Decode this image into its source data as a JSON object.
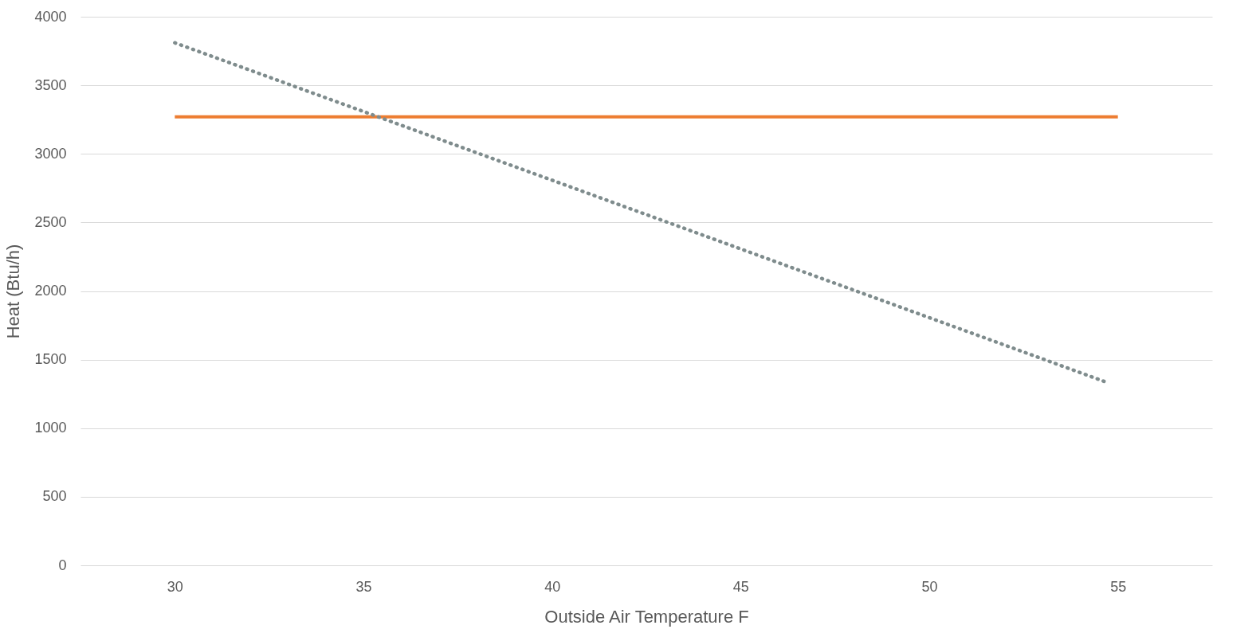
{
  "chart_data": {
    "type": "line",
    "xlabel": "Outside Air Temperature F",
    "ylabel": "Heat (Btu/h)",
    "xlim": [
      27.5,
      57.5
    ],
    "xticks": [
      30,
      35,
      40,
      45,
      50,
      55
    ],
    "ylim": [
      0,
      4000
    ],
    "yticks": [
      0,
      500,
      1000,
      1500,
      2000,
      2500,
      3000,
      3500,
      4000
    ],
    "grid": "y",
    "marker": "none",
    "series": [
      {
        "x": [
          30,
          55
        ],
        "values": [
          3270,
          3270
        ],
        "color": "#ed7d31",
        "line_style": "solid"
      },
      {
        "x": [
          30,
          54.75
        ],
        "values": [
          3810,
          1330
        ],
        "color": "#7f8c8d",
        "line_style": "dotted"
      }
    ]
  }
}
